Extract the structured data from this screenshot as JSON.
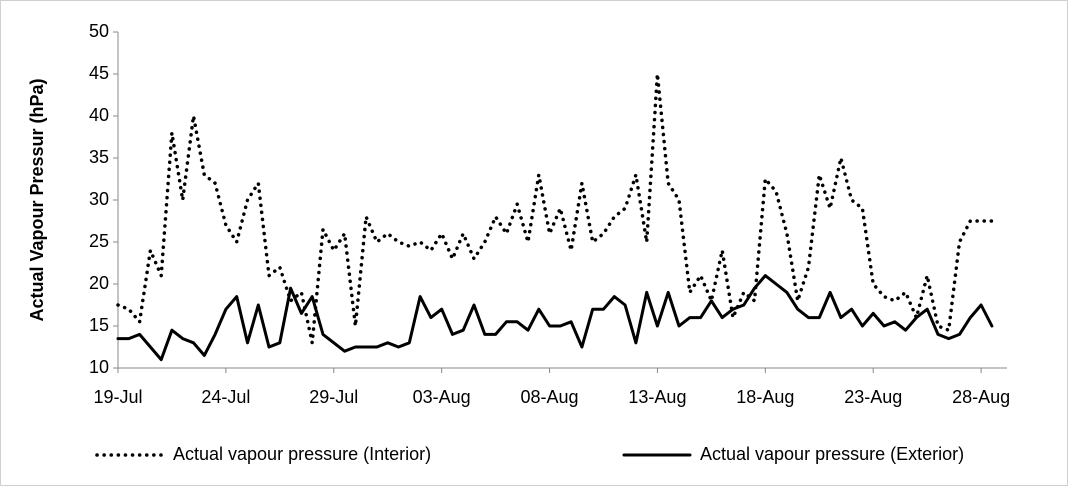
{
  "chart_data": {
    "type": "line",
    "y_label": "Actual Vapour Pressur (hPa)",
    "x": [
      0,
      0.5,
      1,
      1.5,
      2,
      2.5,
      3,
      3.5,
      4,
      4.5,
      5,
      5.5,
      6,
      6.5,
      7,
      7.5,
      8,
      8.5,
      9,
      9.5,
      10,
      10.5,
      11,
      11.5,
      12,
      12.5,
      13,
      13.5,
      14,
      14.5,
      15,
      15.5,
      16,
      16.5,
      17,
      17.5,
      18,
      18.5,
      19,
      19.5,
      20,
      20.5,
      21,
      21.5,
      22,
      22.5,
      23,
      23.5,
      24,
      24.5,
      25,
      25.5,
      26,
      26.5,
      27,
      27.5,
      28,
      28.5,
      29,
      29.5,
      30,
      30.5,
      31,
      31.5,
      32,
      32.5,
      33,
      33.5,
      34,
      34.5,
      35,
      35.5,
      36,
      36.5,
      37,
      37.5,
      38,
      38.5,
      39,
      39.5,
      40,
      40.5
    ],
    "series": [
      {
        "name": "Actual vapour pressure (Interior)",
        "color": "#000000",
        "dashed": true,
        "values": [
          17.5,
          17,
          15.5,
          24,
          21,
          38,
          30,
          40,
          33,
          32,
          27,
          25,
          30,
          32,
          21,
          22,
          18,
          19,
          13,
          26.5,
          24,
          26,
          15,
          28,
          25,
          26,
          25,
          24.5,
          25,
          24,
          26,
          23,
          26,
          23,
          25,
          28,
          26,
          29.5,
          25,
          33,
          26,
          29,
          24,
          32,
          25,
          26,
          28,
          29,
          33,
          25,
          45,
          32,
          30,
          19,
          21,
          18,
          24,
          16,
          19,
          18,
          32.5,
          31,
          26,
          18,
          22,
          33,
          29,
          35,
          30,
          29,
          20,
          18.5,
          18,
          19,
          16,
          21,
          15,
          14.5,
          25,
          27.5,
          27.5,
          27.5
        ]
      },
      {
        "name": "Actual vapour pressure (Exterior)",
        "color": "#000000",
        "dashed": false,
        "values": [
          13.5,
          13.5,
          14,
          12.5,
          11,
          14.5,
          13.5,
          13,
          11.5,
          14,
          17,
          18.5,
          13,
          17.5,
          12.5,
          13,
          19.5,
          16.5,
          18.5,
          14,
          13,
          12,
          12.5,
          12.5,
          12.5,
          13,
          12.5,
          13,
          18.5,
          16,
          17,
          14,
          14.5,
          17.5,
          14,
          14,
          15.5,
          15.5,
          14.5,
          17,
          15,
          15,
          15.5,
          12.5,
          17,
          17,
          18.5,
          17.5,
          13,
          19,
          15,
          19,
          15,
          16,
          16,
          18,
          16,
          17,
          17.5,
          19.5,
          21,
          20,
          19,
          17,
          16,
          16,
          19,
          16,
          17,
          15,
          16.5,
          15,
          15.5,
          14.5,
          16,
          17,
          14,
          13.5,
          14,
          16,
          17.5,
          15
        ]
      }
    ],
    "xlim": [
      0,
      41.2
    ],
    "xticks": [
      {
        "value": 0,
        "label": "19-Jul"
      },
      {
        "value": 5,
        "label": "24-Jul"
      },
      {
        "value": 10,
        "label": "29-Jul"
      },
      {
        "value": 15,
        "label": "03-Aug"
      },
      {
        "value": 20,
        "label": "08-Aug"
      },
      {
        "value": 25,
        "label": "13-Aug"
      },
      {
        "value": 30,
        "label": "18-Aug"
      },
      {
        "value": 35,
        "label": "23-Aug"
      },
      {
        "value": 40,
        "label": "28-Aug"
      }
    ],
    "ylim": [
      10,
      50
    ],
    "yticks": [
      10,
      15,
      20,
      25,
      30,
      35,
      40,
      45,
      50
    ],
    "legend": "bottom"
  }
}
